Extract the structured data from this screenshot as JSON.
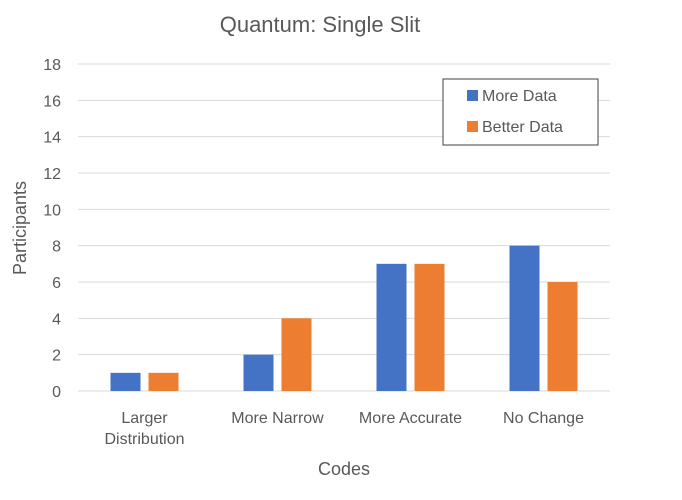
{
  "chart_data": {
    "type": "bar",
    "title": "Quantum: Single Slit",
    "xlabel": "Codes",
    "ylabel": "Participants",
    "categories": [
      [
        "Larger",
        "Distribution"
      ],
      [
        "More Narrow"
      ],
      [
        "More Accurate"
      ],
      [
        "No Change"
      ]
    ],
    "series": [
      {
        "name": "More Data",
        "values": [
          1,
          2,
          7,
          8
        ],
        "color": "#4472C4"
      },
      {
        "name": "Better Data",
        "values": [
          1,
          4,
          7,
          6
        ],
        "color": "#ED7D31"
      }
    ],
    "ylim": [
      0,
      18
    ],
    "yticks": [
      0,
      2,
      4,
      6,
      8,
      10,
      12,
      14,
      16,
      18
    ],
    "grid": true,
    "legend": "top-right"
  }
}
